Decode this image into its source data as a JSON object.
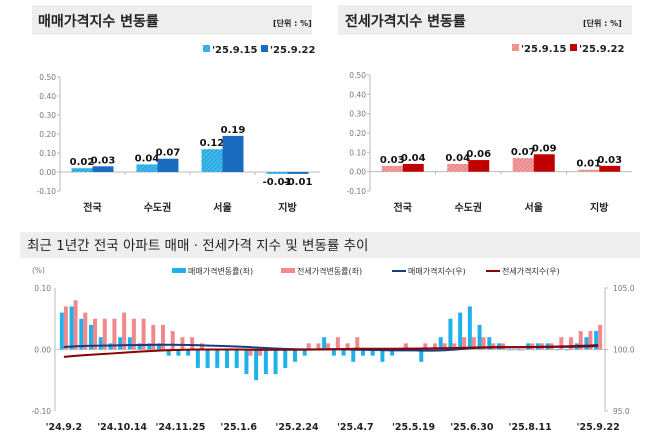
{
  "colors": {
    "sale_prev": "#29abe2",
    "sale_curr": "#1a6cc0",
    "jeonse_prev": "#f08a8a",
    "jeonse_curr": "#c00000",
    "sale_rate_bar": "#1fb2ea",
    "jeonse_rate_bar": "#f0888c",
    "sale_index_line": "#1f3a7a",
    "jeonse_index_line": "#8b0000",
    "title_bg": "#eeeeee"
  },
  "chart_data": [
    {
      "type": "bar",
      "title": "매매가격지수 변동률",
      "unit": "[단위 : %]",
      "categories": [
        "전국",
        "수도권",
        "서울",
        "지방"
      ],
      "series": [
        {
          "name": "'25.9.15",
          "values": [
            0.02,
            0.04,
            0.12,
            -0.01
          ],
          "labels": [
            "0.02",
            "0.04",
            "0.12",
            "-0.01"
          ]
        },
        {
          "name": "'25.9.22",
          "values": [
            0.03,
            0.07,
            0.19,
            -0.01
          ],
          "labels": [
            "0.03",
            "0.07",
            "0.19",
            "-0.01"
          ]
        }
      ],
      "ylim": [
        -0.1,
        0.5
      ],
      "yticks": [
        "0.50",
        "0.40",
        "0.30",
        "0.20",
        "0.10",
        "0.00",
        "-0.10"
      ],
      "legend": "top-right"
    },
    {
      "type": "bar",
      "title": "전세가격지수 변동률",
      "unit": "[단위 : %]",
      "categories": [
        "전국",
        "수도권",
        "서울",
        "지방"
      ],
      "series": [
        {
          "name": "'25.9.15",
          "values": [
            0.03,
            0.04,
            0.07,
            0.01
          ],
          "labels": [
            "0.03",
            "0.04",
            "0.07",
            "0.01"
          ]
        },
        {
          "name": "'25.9.22",
          "values": [
            0.04,
            0.06,
            0.09,
            0.03
          ],
          "labels": [
            "0.04",
            "0.06",
            "0.09",
            "0.03"
          ]
        }
      ],
      "ylim": [
        -0.1,
        0.5
      ],
      "yticks": [
        "0.50",
        "0.40",
        "0.30",
        "0.20",
        "0.10",
        "0.00",
        "-0.10"
      ],
      "legend": "top-right"
    },
    {
      "type": "bar+line",
      "title": "최근 1년간 전국 아파트 매매 · 전세가격 지수 및 변동률 추이",
      "ylabel_left": "(%)",
      "ylim_left": [
        -0.1,
        0.1
      ],
      "yticks_left": [
        "0.10",
        "0.00",
        "-0.10"
      ],
      "ylim_right": [
        95.0,
        105.0
      ],
      "yticks_right": [
        "105.0",
        "100.0",
        "95.0"
      ],
      "xtick_labels": [
        "'24.9.2",
        "'24.10.14",
        "'24.11.25",
        "'25.1.6",
        "'25.2.24",
        "'25.4.7",
        "'25.5.19",
        "'25.6.30",
        "'25.8.11",
        "'25.9.22"
      ],
      "legend": "top",
      "series": [
        {
          "name": "매매가격변동률(좌)",
          "kind": "bar",
          "axis": "left",
          "values": [
            0.06,
            0.07,
            0.05,
            0.04,
            0.02,
            0.01,
            0.02,
            0.02,
            0.01,
            0.01,
            0.01,
            -0.01,
            -0.01,
            -0.01,
            -0.03,
            -0.03,
            -0.03,
            -0.03,
            -0.03,
            -0.04,
            -0.05,
            -0.04,
            -0.04,
            -0.03,
            -0.02,
            -0.01,
            0.0,
            0.02,
            -0.01,
            -0.01,
            -0.02,
            -0.01,
            -0.01,
            -0.02,
            -0.01,
            0.0,
            0.0,
            -0.02,
            0.0,
            0.02,
            0.05,
            0.06,
            0.07,
            0.04,
            0.02,
            0.01,
            0.0,
            0.0,
            0.01,
            0.01,
            0.01,
            0.0,
            0.0,
            0.01,
            0.02,
            0.03
          ]
        },
        {
          "name": "전세가격변동률(좌)",
          "kind": "bar",
          "axis": "left",
          "values": [
            0.07,
            0.08,
            0.06,
            0.05,
            0.05,
            0.05,
            0.06,
            0.05,
            0.05,
            0.04,
            0.04,
            0.03,
            0.02,
            0.02,
            0.01,
            0.0,
            0.0,
            0.0,
            0.0,
            -0.01,
            -0.01,
            0.0,
            0.0,
            0.0,
            0.0,
            0.01,
            0.01,
            0.01,
            0.02,
            0.01,
            0.02,
            0.0,
            0.0,
            0.0,
            0.0,
            0.01,
            0.0,
            0.01,
            0.01,
            0.01,
            0.01,
            0.02,
            0.02,
            0.02,
            0.01,
            0.01,
            0.0,
            0.0,
            0.01,
            0.01,
            0.01,
            0.02,
            0.02,
            0.03,
            0.03,
            0.04
          ]
        },
        {
          "name": "매매가격지수(우)",
          "kind": "line",
          "axis": "right",
          "values": [
            100.2,
            100.25,
            100.28,
            100.3,
            100.32,
            100.33,
            100.35,
            100.36,
            100.37,
            100.38,
            100.39,
            100.39,
            100.38,
            100.37,
            100.35,
            100.32,
            100.29,
            100.26,
            100.23,
            100.2,
            100.15,
            100.11,
            100.07,
            100.04,
            100.02,
            100.01,
            100.01,
            100.02,
            100.01,
            100.0,
            99.98,
            99.97,
            99.96,
            99.94,
            99.93,
            99.93,
            99.93,
            99.91,
            99.91,
            99.93,
            99.98,
            100.04,
            100.11,
            100.15,
            100.17,
            100.18,
            100.18,
            100.18,
            100.19,
            100.2,
            100.21,
            100.21,
            100.21,
            100.22,
            100.24,
            100.27
          ]
        },
        {
          "name": "전세가격지수(우)",
          "kind": "line",
          "axis": "right",
          "values": [
            99.4,
            99.47,
            99.53,
            99.58,
            99.63,
            99.68,
            99.74,
            99.79,
            99.84,
            99.88,
            99.92,
            99.95,
            99.97,
            99.99,
            100.0,
            100.0,
            100.0,
            100.0,
            100.0,
            99.99,
            99.98,
            99.98,
            99.98,
            99.98,
            99.98,
            99.99,
            100.0,
            100.01,
            100.03,
            100.04,
            100.06,
            100.06,
            100.06,
            100.06,
            100.06,
            100.07,
            100.07,
            100.08,
            100.09,
            100.1,
            100.11,
            100.13,
            100.15,
            100.17,
            100.18,
            100.19,
            100.19,
            100.19,
            100.2,
            100.21,
            100.22,
            100.24,
            100.26,
            100.29,
            100.32,
            100.36
          ]
        }
      ]
    }
  ]
}
